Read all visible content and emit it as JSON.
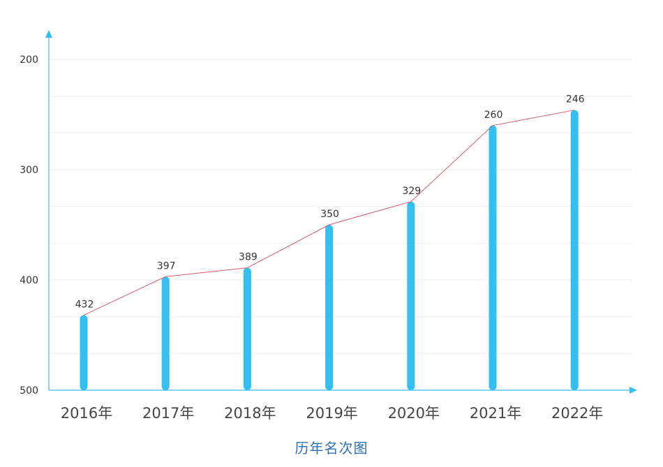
{
  "chart_data": {
    "type": "bar",
    "categories": [
      "2016年",
      "2017年",
      "2018年",
      "2019年",
      "2020年",
      "2021年",
      "2022年"
    ],
    "values": [
      432,
      397,
      389,
      350,
      329,
      260,
      246
    ],
    "ylim": [
      500,
      200
    ],
    "y_inverted": true,
    "yticks": [
      "200",
      "300",
      "400",
      "500"
    ],
    "overlay": "line",
    "title": "历年名次图",
    "grid": true,
    "colors": {
      "bar": "#33bff0",
      "line": "#d35a6a",
      "axis": "#33bff0",
      "grid": "#ebebeb"
    }
  }
}
